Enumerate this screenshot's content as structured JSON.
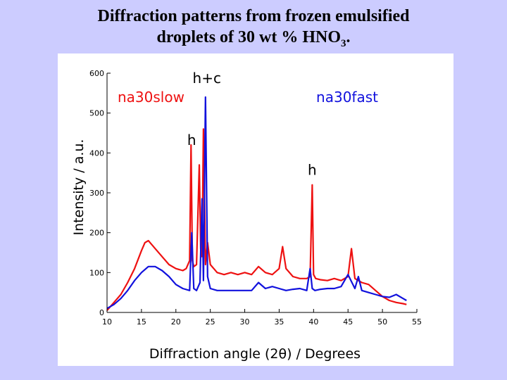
{
  "slide": {
    "title_line1": "Diffraction patterns from frozen emulsified",
    "title_line2_main": "droplets of 30 wt % HNO",
    "title_line2_sub": "3",
    "title_line2_end": "."
  },
  "chart_data": {
    "type": "line",
    "title": "",
    "xlabel": "Diffraction angle (2θ) / Degrees",
    "ylabel": "Intensity / a.u.",
    "xlim": [
      10,
      55
    ],
    "ylim": [
      0,
      600
    ],
    "x_ticks": [
      10,
      15,
      20,
      25,
      30,
      35,
      40,
      45,
      50,
      55
    ],
    "y_ticks": [
      0,
      100,
      200,
      300,
      400,
      500,
      600
    ],
    "grid": false,
    "series": [
      {
        "name": "na30slow",
        "color": "#ee1111",
        "x": [
          10,
          11,
          12,
          13,
          14,
          15,
          15.5,
          16,
          16.5,
          17,
          18,
          19,
          20,
          21,
          21.5,
          22,
          22.2,
          22.4,
          22.6,
          23,
          23.4,
          23.6,
          23.8,
          24,
          24.3,
          24.6,
          25,
          25.5,
          26,
          27,
          28,
          29,
          30,
          31,
          32,
          33,
          34,
          35,
          35.5,
          36,
          37,
          38,
          39,
          39.5,
          39.8,
          40,
          40.3,
          41,
          42,
          43,
          44,
          45,
          45.5,
          46,
          47,
          48,
          49,
          50,
          51,
          52,
          53,
          53.5
        ],
        "values": [
          5,
          25,
          45,
          75,
          110,
          155,
          175,
          180,
          170,
          160,
          140,
          120,
          110,
          105,
          110,
          130,
          420,
          130,
          115,
          120,
          370,
          160,
          140,
          460,
          120,
          175,
          120,
          110,
          100,
          95,
          100,
          95,
          100,
          95,
          115,
          100,
          95,
          110,
          165,
          110,
          90,
          85,
          85,
          90,
          320,
          95,
          85,
          82,
          80,
          85,
          80,
          90,
          160,
          85,
          75,
          70,
          55,
          40,
          30,
          25,
          22,
          20
        ]
      },
      {
        "name": "na30fast",
        "color": "#1111dd",
        "x": [
          10,
          11,
          12,
          13,
          14,
          15,
          16,
          17,
          18,
          19,
          20,
          21,
          22,
          22.3,
          22.6,
          23,
          23.5,
          23.8,
          24,
          24.3,
          24.6,
          25,
          26,
          27,
          28,
          29,
          30,
          31,
          32,
          33,
          34,
          35,
          36,
          37,
          38,
          39,
          39.5,
          39.8,
          40.2,
          41,
          42,
          43,
          44,
          45,
          46,
          46.5,
          47,
          48,
          49,
          50,
          51,
          52,
          53,
          53.5
        ],
        "values": [
          10,
          20,
          35,
          55,
          80,
          100,
          115,
          115,
          105,
          90,
          70,
          60,
          55,
          200,
          60,
          55,
          75,
          285,
          80,
          540,
          90,
          60,
          55,
          55,
          55,
          55,
          55,
          55,
          75,
          60,
          65,
          60,
          55,
          58,
          60,
          55,
          110,
          60,
          55,
          58,
          60,
          60,
          65,
          95,
          60,
          90,
          55,
          50,
          45,
          40,
          38,
          45,
          35,
          30
        ]
      }
    ],
    "annotations": [
      {
        "text": "h+c",
        "x": 24.5,
        "y": 575
      },
      {
        "text": "h",
        "x": 22.3,
        "y": 420
      },
      {
        "text": "h",
        "x": 39.8,
        "y": 345
      }
    ],
    "legend": [
      {
        "text": "na30slow",
        "color": "#ee1111",
        "position": "top-left"
      },
      {
        "text": "na30fast",
        "color": "#1111dd",
        "position": "top-right"
      }
    ]
  }
}
